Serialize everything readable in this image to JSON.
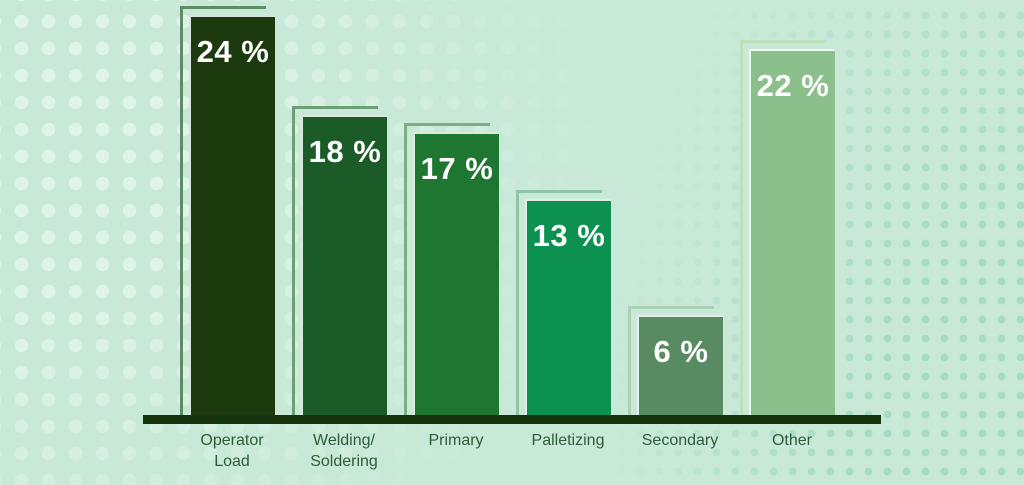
{
  "background": {
    "color": "#c9e9d8",
    "dots_left_color": "#def4e8",
    "dots_right_color": "#a6dcc2"
  },
  "chart_data": {
    "type": "bar",
    "title": "",
    "xlabel": "",
    "ylabel": "",
    "ylim": [
      0,
      25
    ],
    "grid": false,
    "legend": "none",
    "unit": "%",
    "categories": [
      "Operator Load",
      "Welding/ Soldering",
      "Primary",
      "Palletizing",
      "Secondary",
      "Other"
    ],
    "values": [
      24,
      18,
      17,
      13,
      6,
      22
    ],
    "value_label_color": "#ffffff",
    "category_label_color": "#2e5c39",
    "axis_color": "#17330d",
    "bars": [
      {
        "value": 24,
        "display": "24 %",
        "label_lines": [
          "Operator",
          "Load"
        ],
        "fill": "#1d3a0e",
        "outline": "#5e8d65"
      },
      {
        "value": 18,
        "display": "18 %",
        "label_lines": [
          "Welding/",
          "Soldering"
        ],
        "fill": "#1b5b28",
        "outline": "#6aa073"
      },
      {
        "value": 17,
        "display": "17 %",
        "label_lines": [
          "Primary"
        ],
        "fill": "#1e7631",
        "outline": "#79b184"
      },
      {
        "value": 13,
        "display": "13 %",
        "label_lines": [
          "Palletizing"
        ],
        "fill": "#0d9150",
        "outline": "#8cc6a4"
      },
      {
        "value": 6,
        "display": "6 %",
        "label_lines": [
          "Secondary"
        ],
        "fill": "#588b61",
        "outline": "#abd0b3"
      },
      {
        "value": 22,
        "display": "22 %",
        "label_lines": [
          "Other"
        ],
        "fill": "#8bbf8b",
        "outline": "#bfe0bc"
      }
    ]
  }
}
